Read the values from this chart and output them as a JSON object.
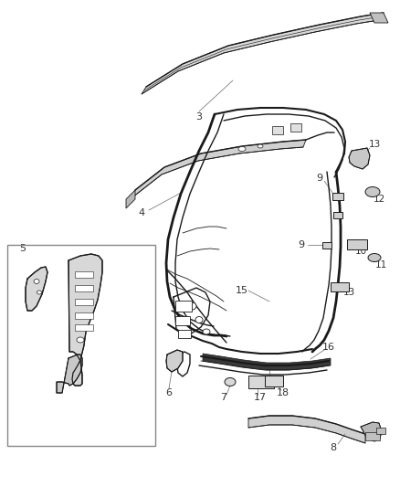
{
  "background_color": "#ffffff",
  "line_color": "#1a1a1a",
  "fig_width": 4.39,
  "fig_height": 5.33,
  "dpi": 100
}
